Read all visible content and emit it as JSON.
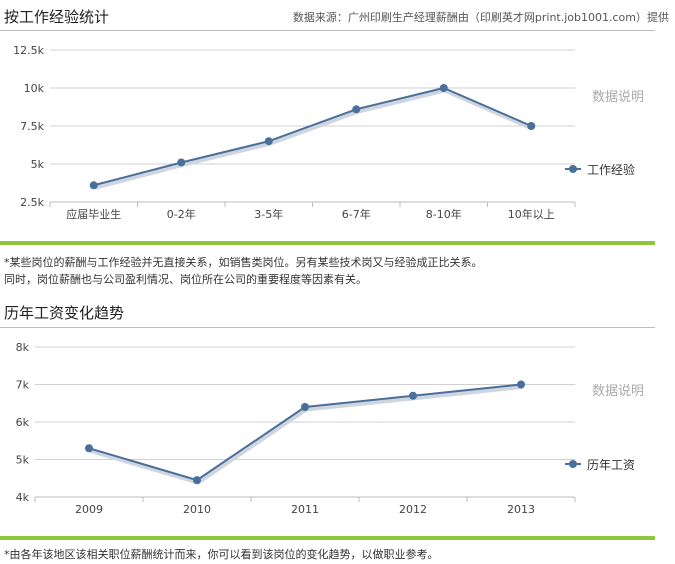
{
  "section1": {
    "title": "按工作经验统计",
    "source": "数据来源：广州印刷生产经理薪酬由（印刷英才网print.job1001.com）提供",
    "note_lines": [
      "*某些岗位的薪酬与工作经验并无直接关系，如销售类岗位。另有某些技术岗又与经验成正比关系。",
      "同时，岗位薪酬也与公司盈利情况、岗位所在公司的重要程度等因素有关。"
    ]
  },
  "section2": {
    "title": "历年工资变化趋势",
    "note_lines": [
      "*由各年该地区该相关职位薪酬统计而来，你可以看到该岗位的变化趋势，以做职业参考。"
    ]
  },
  "colors": {
    "line": "#4a6f9a",
    "grid": "#d0d0d0",
    "accent": "#8dc63f"
  },
  "chart_data": [
    {
      "type": "line",
      "categories": [
        "应届毕业生",
        "0-2年",
        "3-5年",
        "6-7年",
        "8-10年",
        "10年以上"
      ],
      "series": [
        {
          "name": "工作经验",
          "values": [
            3600,
            5100,
            6500,
            8600,
            10000,
            7500
          ]
        }
      ],
      "yticks": [
        "2.5k",
        "5k",
        "7.5k",
        "10k",
        "12.5k"
      ],
      "ytick_values": [
        2500,
        5000,
        7500,
        10000,
        12500
      ],
      "ylim": [
        2500,
        12500
      ],
      "side_label": "数据说明",
      "legend_position": "right",
      "grid": true
    },
    {
      "type": "line",
      "categories": [
        "2009",
        "2010",
        "2011",
        "2012",
        "2013"
      ],
      "series": [
        {
          "name": "历年工资",
          "values": [
            5300,
            4450,
            6400,
            6700,
            7000
          ]
        }
      ],
      "yticks": [
        "4k",
        "5k",
        "6k",
        "7k",
        "8k"
      ],
      "ytick_values": [
        4000,
        5000,
        6000,
        7000,
        8000
      ],
      "ylim": [
        4000,
        8000
      ],
      "side_label": "数据说明",
      "legend_position": "right",
      "grid": true
    }
  ]
}
